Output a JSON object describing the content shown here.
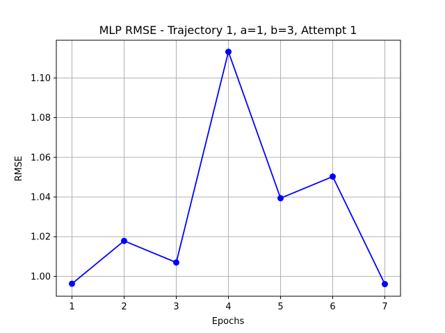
{
  "chart_data": {
    "type": "line",
    "title": "MLP RMSE - Trajectory 1, a=1, b=3, Attempt 1",
    "xlabel": "Epochs",
    "ylabel": "RMSE",
    "x": [
      1,
      2,
      3,
      4,
      5,
      6,
      7
    ],
    "series": [
      {
        "values": [
          0.9963,
          1.0179,
          1.007,
          1.1132,
          1.0394,
          1.0503,
          0.9961
        ],
        "color": "#0000ff",
        "marker": "circle"
      }
    ],
    "x_ticks": [
      "1",
      "2",
      "3",
      "4",
      "5",
      "6",
      "7"
    ],
    "y_ticks": [
      "1.00",
      "1.02",
      "1.04",
      "1.06",
      "1.08",
      "1.10"
    ],
    "x_tick_values": [
      1,
      2,
      3,
      4,
      5,
      6,
      7
    ],
    "y_tick_values": [
      1.0,
      1.02,
      1.04,
      1.06,
      1.08,
      1.1
    ],
    "xlim": [
      0.7,
      7.3
    ],
    "ylim": [
      0.99,
      1.119
    ],
    "grid": true,
    "grid_color": "#b0b0b0",
    "axis_color": "#000000"
  }
}
